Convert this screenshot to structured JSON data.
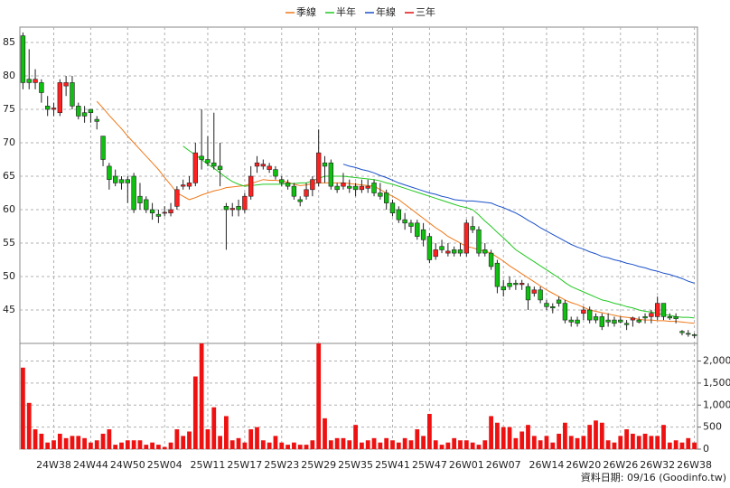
{
  "chart_data": {
    "type": "candlestick",
    "categories": [
      null,
      null,
      null,
      null,
      null,
      "24W38",
      null,
      null,
      null,
      null,
      null,
      "24W44",
      null,
      null,
      null,
      null,
      null,
      "24W50",
      null,
      null,
      null,
      null,
      null,
      "25W04",
      null,
      null,
      null,
      null,
      null,
      null,
      "25W11",
      null,
      null,
      null,
      null,
      null,
      "25W17",
      null,
      null,
      null,
      null,
      null,
      "25W23",
      null,
      null,
      null,
      null,
      null,
      "25W29",
      null,
      null,
      null,
      null,
      null,
      "25W35",
      null,
      null,
      null,
      null,
      null,
      "25W41",
      null,
      null,
      null,
      null,
      null,
      "25W47",
      null,
      null,
      null,
      null,
      null,
      "26W01",
      null,
      null,
      null,
      null,
      null,
      "26W07",
      null,
      null,
      null,
      null,
      null,
      null,
      "26W14",
      null,
      null,
      null,
      null,
      null,
      "26W20",
      null,
      null,
      null,
      null,
      null,
      "26W26",
      null,
      null,
      null,
      null,
      null,
      "26W32",
      null,
      null,
      null,
      null,
      null,
      "26W38"
    ],
    "open": [
      86,
      79.5,
      79,
      79,
      75.5,
      75,
      74.5,
      78.5,
      79,
      75.5,
      74.5,
      75,
      73.5,
      71,
      66.5,
      65,
      64.5,
      64.5,
      65,
      62,
      61.5,
      60,
      59.3,
      59.5,
      59.5,
      60.5,
      63.5,
      63.5,
      64,
      68,
      67.5,
      67,
      66.5,
      60.5,
      60,
      60.5,
      60,
      62,
      66.5,
      66.5,
      66,
      66,
      64.5,
      64,
      63.5,
      61.5,
      62,
      63,
      64,
      67,
      67,
      63.5,
      63.5,
      63.5,
      63.5,
      63,
      63.2,
      64,
      62.5,
      62.5,
      61,
      60,
      58.5,
      58,
      58,
      57,
      56,
      53,
      54.5,
      53.5,
      54,
      54,
      53.5,
      57.5,
      57,
      54,
      53.5,
      52,
      48.5,
      49,
      49,
      48.8,
      48.5,
      47.5,
      48,
      46,
      45.5,
      46.5,
      46,
      43.5,
      43.5,
      44.5,
      45,
      44,
      44,
      43.5,
      43.5,
      43.5,
      43,
      43.5,
      43.5,
      44,
      44,
      44,
      46,
      44,
      44,
      41.8,
      41.5,
      41.3
    ],
    "high": [
      86.5,
      84,
      81,
      79.5,
      77,
      76,
      79.5,
      80,
      80,
      76,
      75.5,
      75,
      74,
      71,
      67,
      66,
      65,
      65,
      65.5,
      64,
      62,
      61,
      60,
      60.5,
      61,
      63.5,
      64.5,
      65,
      70,
      75,
      71,
      74.5,
      70,
      61,
      61,
      61.5,
      62.5,
      66.5,
      68,
      67.5,
      67,
      66.5,
      65,
      64.5,
      64,
      62,
      64,
      65,
      72,
      68,
      67.5,
      64,
      65.5,
      64.5,
      64,
      64.5,
      64.5,
      64.5,
      64,
      63,
      61.5,
      60.5,
      59.5,
      58.5,
      58.5,
      58,
      56.5,
      55,
      55.5,
      55,
      54.5,
      55,
      58.5,
      59,
      57.5,
      55,
      54,
      52.5,
      49.5,
      50,
      49.5,
      49.5,
      49,
      48.5,
      48.5,
      46.5,
      46,
      47,
      46.5,
      44,
      44,
      45.5,
      45.5,
      44.5,
      44.5,
      44.5,
      44,
      44,
      43.5,
      44,
      44,
      44.5,
      45,
      47,
      46,
      44.5,
      44.5,
      42,
      42,
      41.5
    ],
    "low": [
      78,
      78,
      78,
      76,
      74,
      74,
      74,
      77,
      75,
      73.5,
      73,
      73,
      72,
      66.5,
      63,
      63.5,
      63,
      61,
      59.5,
      60,
      59.5,
      58.5,
      58,
      59,
      59,
      60,
      63,
      63,
      63.5,
      66,
      66.5,
      66,
      63.5,
      54,
      59,
      59,
      59.5,
      61.5,
      65.5,
      66,
      65.5,
      64.5,
      63.5,
      63,
      61.5,
      60.5,
      61.5,
      62,
      63.5,
      64,
      63,
      62.5,
      63,
      62.5,
      62,
      62.5,
      62.5,
      62,
      61.5,
      60,
      59,
      58,
      57,
      56.5,
      55.5,
      54.5,
      52,
      52.5,
      53.5,
      53,
      53,
      53,
      53,
      56.5,
      53,
      53,
      51,
      47.5,
      47,
      48,
      48,
      48,
      45,
      47,
      46,
      45,
      44.5,
      45.5,
      43,
      42.5,
      42.5,
      43.5,
      43,
      43,
      42,
      42.5,
      42.5,
      43,
      42,
      42.5,
      43,
      43,
      43,
      43.5,
      43.5,
      43.5,
      43,
      41.2,
      41,
      40.8
    ],
    "close": [
      79,
      79,
      79.5,
      77.5,
      75,
      75.2,
      79,
      79,
      75.5,
      74,
      74,
      74.5,
      73.2,
      67.5,
      64.5,
      64,
      64,
      64,
      60,
      61,
      60,
      59.5,
      59,
      59.6,
      60,
      63,
      63.7,
      64,
      68.5,
      67.5,
      67,
      66.5,
      66,
      60,
      60.2,
      60,
      62,
      65,
      67,
      66.8,
      66.5,
      65,
      64,
      63.5,
      62,
      61.2,
      63,
      64.5,
      68.5,
      66.5,
      63.5,
      63,
      64,
      63.2,
      63,
      63.5,
      63.5,
      62.5,
      62,
      61,
      59.5,
      58.5,
      58,
      57.5,
      56,
      55.5,
      52.5,
      54,
      54,
      53.8,
      53.5,
      53.5,
      58,
      57,
      53.5,
      53.5,
      51.5,
      48.5,
      48,
      48.5,
      48.8,
      49,
      46.5,
      48,
      46.5,
      45.5,
      45.3,
      46,
      43.5,
      43.2,
      43,
      45,
      43.5,
      43.5,
      42.5,
      43.2,
      43,
      43.2,
      42.8,
      43.8,
      43.2,
      43.8,
      44.5,
      46,
      44,
      43.8,
      43.7,
      41.6,
      41.4,
      41.2
    ],
    "volume": [
      1850,
      1050,
      450,
      350,
      150,
      200,
      350,
      250,
      300,
      300,
      250,
      150,
      200,
      350,
      450,
      100,
      150,
      200,
      200,
      200,
      100,
      150,
      100,
      50,
      150,
      450,
      300,
      400,
      1650,
      2400,
      450,
      950,
      300,
      750,
      200,
      250,
      150,
      450,
      500,
      200,
      150,
      300,
      150,
      100,
      150,
      100,
      100,
      200,
      2400,
      700,
      200,
      250,
      250,
      200,
      550,
      150,
      200,
      250,
      150,
      250,
      200,
      150,
      250,
      200,
      450,
      300,
      800,
      200,
      100,
      150,
      250,
      200,
      200,
      150,
      100,
      200,
      750,
      600,
      500,
      500,
      250,
      400,
      550,
      300,
      200,
      300,
      150,
      350,
      600,
      300,
      250,
      300,
      550,
      650,
      600,
      200,
      150,
      300,
      450,
      350,
      300,
      350,
      300,
      300,
      550,
      150,
      200,
      150,
      250,
      150
    ],
    "series": [
      {
        "name": "季線",
        "color": "#f07818",
        "values": [
          null,
          null,
          null,
          null,
          null,
          null,
          null,
          null,
          null,
          null,
          null,
          null,
          76.2,
          75.2,
          74.1,
          73.1,
          72.1,
          71.0,
          70.0,
          69.0,
          68.0,
          67.0,
          66.0,
          64.8,
          63.7,
          62.5,
          62.0,
          61.5,
          61.8,
          62.2,
          62.5,
          62.8,
          63.0,
          63.3,
          63.4,
          63.5,
          63.6,
          63.9,
          64.2,
          64.5,
          64.4,
          64.4,
          64.3,
          64.1,
          63.8,
          63.6,
          63.7,
          63.9,
          64.0,
          64.0,
          64.0,
          64.0,
          64.0,
          63.9,
          63.8,
          63.7,
          63.6,
          63.5,
          63.0,
          62.5,
          62.0,
          61.5,
          60.8,
          60.1,
          59.4,
          58.7,
          58.0,
          57.3,
          56.7,
          56.0,
          55.5,
          55.0,
          54.5,
          54.3,
          54.0,
          53.8,
          53.5,
          52.9,
          52.3,
          51.6,
          51.0,
          50.4,
          49.8,
          49.2,
          48.6,
          48.0,
          47.5,
          47.0,
          46.5,
          46.1,
          45.8,
          45.4,
          45.0,
          44.8,
          44.6,
          44.4,
          44.2,
          44.0,
          43.9,
          43.8,
          43.6,
          43.5,
          43.5,
          43.4,
          43.4,
          43.3,
          43.3,
          43.2,
          43.1,
          43.0
        ]
      },
      {
        "name": "半年",
        "color": "#22c822",
        "values": [
          null,
          null,
          null,
          null,
          null,
          null,
          null,
          null,
          null,
          null,
          null,
          null,
          null,
          null,
          null,
          null,
          null,
          null,
          null,
          null,
          null,
          null,
          null,
          null,
          null,
          null,
          69.5,
          68.8,
          68.2,
          67.5,
          66.8,
          66.2,
          65.5,
          64.8,
          64.2,
          63.8,
          63.5,
          63.6,
          63.7,
          63.8,
          63.8,
          63.8,
          63.8,
          63.9,
          63.9,
          64.0,
          64.0,
          64.3,
          64.7,
          65.0,
          65.0,
          65.0,
          65.0,
          64.9,
          64.8,
          64.7,
          64.6,
          64.5,
          64.3,
          64.0,
          63.8,
          63.5,
          63.2,
          62.9,
          62.6,
          62.3,
          62.0,
          61.7,
          61.4,
          61.1,
          60.8,
          60.5,
          60.3,
          60.0,
          59.2,
          58.3,
          57.5,
          56.6,
          55.8,
          54.9,
          54.0,
          53.4,
          52.8,
          52.2,
          51.6,
          51.0,
          50.4,
          49.8,
          49.1,
          48.5,
          48.1,
          47.7,
          47.3,
          46.9,
          46.5,
          46.3,
          46.0,
          45.8,
          45.5,
          45.3,
          45.0,
          44.8,
          44.7,
          44.5,
          44.3,
          44.2,
          44.0,
          43.9,
          43.9,
          43.8
        ]
      },
      {
        "name": "年線",
        "color": "#1a50c8",
        "values": [
          null,
          null,
          null,
          null,
          null,
          null,
          null,
          null,
          null,
          null,
          null,
          null,
          null,
          null,
          null,
          null,
          null,
          null,
          null,
          null,
          null,
          null,
          null,
          null,
          null,
          null,
          null,
          null,
          null,
          null,
          null,
          null,
          null,
          null,
          null,
          null,
          null,
          null,
          null,
          null,
          null,
          null,
          null,
          null,
          null,
          null,
          null,
          null,
          null,
          null,
          null,
          null,
          66.8,
          66.5,
          66.3,
          66.0,
          65.8,
          65.5,
          65.1,
          64.8,
          64.4,
          64.0,
          63.7,
          63.4,
          63.1,
          62.8,
          62.5,
          62.3,
          62.0,
          61.8,
          61.5,
          61.4,
          61.3,
          61.3,
          61.2,
          61.1,
          61.0,
          60.6,
          60.3,
          59.9,
          59.5,
          59.0,
          58.4,
          57.9,
          57.3,
          56.8,
          56.3,
          55.8,
          55.3,
          54.8,
          54.4,
          54.1,
          53.7,
          53.4,
          53.0,
          52.8,
          52.5,
          52.3,
          52.0,
          51.8,
          51.5,
          51.3,
          51.0,
          50.8,
          50.5,
          50.3,
          50.0,
          49.7,
          49.3,
          49.0
        ]
      },
      {
        "name": "三年",
        "color": "#e01010",
        "values": [
          null,
          null,
          null,
          null,
          null,
          null,
          null,
          null,
          null,
          null,
          null,
          null,
          null,
          null,
          null,
          null,
          null,
          null,
          null,
          null,
          null,
          null,
          null,
          null,
          null,
          null,
          null,
          null,
          null,
          null,
          null,
          null,
          null,
          null,
          null,
          null,
          null,
          null,
          null,
          null,
          null,
          null,
          null,
          null,
          null,
          null,
          null,
          null,
          null,
          null,
          null,
          null,
          null,
          null,
          null,
          null,
          null,
          null,
          null,
          null,
          null,
          null,
          null,
          null,
          null,
          null,
          null,
          null,
          null,
          null,
          null,
          null,
          null,
          null,
          null,
          null,
          null,
          null,
          null,
          null,
          null,
          null,
          null,
          null,
          null,
          null,
          null,
          null,
          null,
          null,
          null,
          null,
          null,
          null,
          null,
          null,
          null,
          null,
          null,
          null,
          null,
          null,
          null,
          null,
          null,
          null,
          null,
          null,
          null,
          null
        ]
      }
    ],
    "up_color": "#ff2020",
    "down_color": "#10c010",
    "volume_color": "#ee1111",
    "ylim": [
      40,
      87.3
    ],
    "yticks": [
      45,
      50,
      55,
      60,
      65,
      70,
      75,
      80,
      85
    ],
    "y2lim": [
      0,
      2400
    ],
    "y2ticks": [
      0,
      500,
      {
        "value": 1000,
        "label": "1,000"
      },
      {
        "value": 1500,
        "label": "1,500"
      },
      {
        "value": 2000,
        "label": "2,000"
      }
    ],
    "grid": true,
    "footnote": "資料日期: 09/16  (Goodinfo.tw)"
  }
}
